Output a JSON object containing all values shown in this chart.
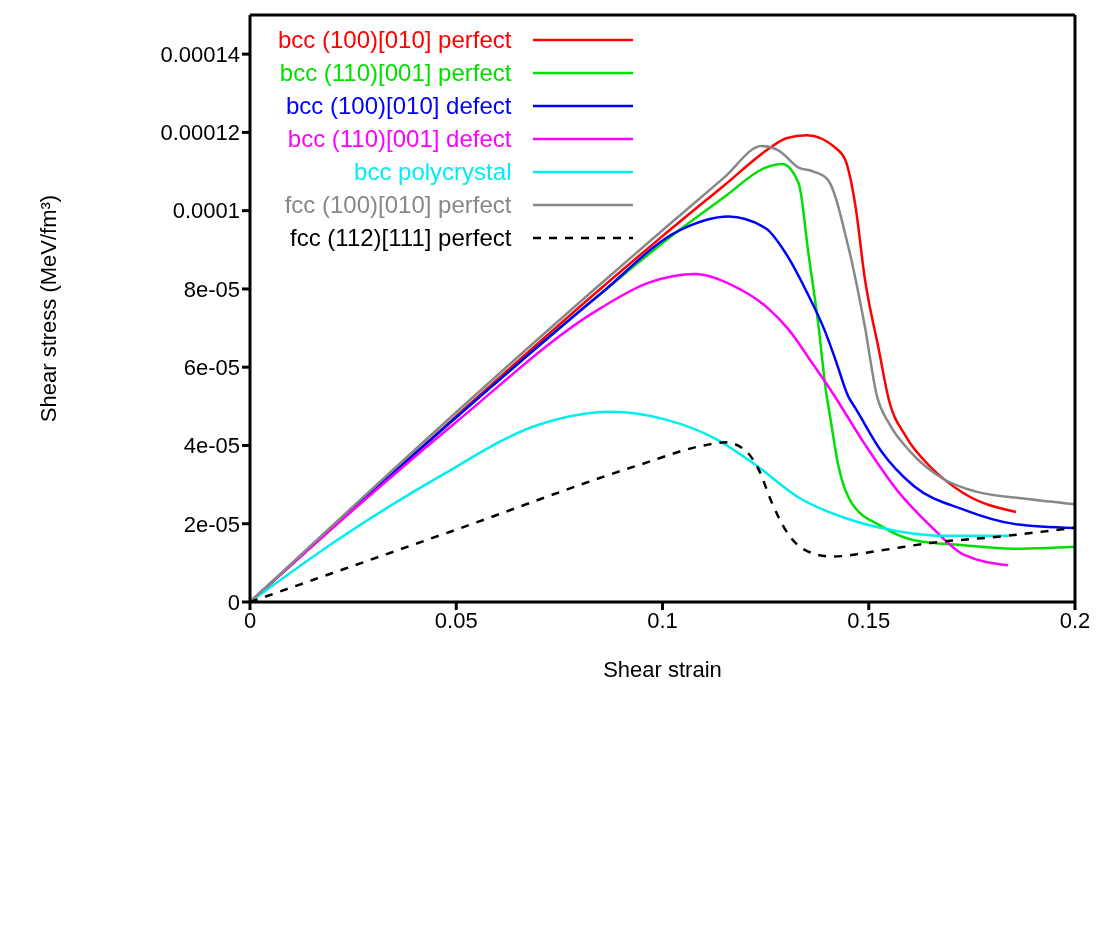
{
  "chart_data": {
    "type": "line",
    "xlabel": "Shear strain",
    "ylabel": "Shear stress (MeV/fm³)",
    "xlim": [
      0,
      0.2
    ],
    "xticks": [
      0,
      0.05,
      0.1,
      0.15,
      0.2
    ],
    "ylim": [
      0,
      0.00015
    ],
    "yticks": [
      0,
      {
        "value": 2e-05,
        "label": "2e-05"
      },
      {
        "value": 4e-05,
        "label": "4e-05"
      },
      {
        "value": 6e-05,
        "label": "6e-05"
      },
      {
        "value": 8e-05,
        "label": "8e-05"
      },
      0.0001,
      0.00012,
      0.00014
    ],
    "grid": false,
    "legend": "top left",
    "marker": "none",
    "series": [
      {
        "name": "bcc (100)[010] perfect",
        "color": "#ff0000",
        "line_style": "solid",
        "x": [
          0,
          0.05,
          0.0847,
          0.1,
          0.115,
          0.126,
          0.13,
          0.135,
          0.142,
          0.1443,
          0.1468,
          0.149,
          0.1524,
          0.1548,
          0.159,
          0.165,
          0.173,
          0.1857
        ],
        "values": [
          0,
          4.75e-05,
          7.98e-05,
          9.35e-05,
          0.0001065,
          0.000116,
          0.0001185,
          0.0001193,
          0.000116,
          0.000113,
          0.000101,
          8.3e-05,
          6.47e-05,
          5.2e-05,
          4.23e-05,
          3.45e-05,
          2.78e-05,
          2.3e-05
        ]
      },
      {
        "name": "bcc (110)[001] perfect",
        "color": "#00e000",
        "line_style": "solid",
        "x": [
          0,
          0.05,
          0.0847,
          0.104,
          0.115,
          0.125,
          0.129,
          0.133,
          0.1354,
          0.1378,
          0.1398,
          0.1403,
          0.1427,
          0.1458,
          0.153,
          0.161,
          0.173,
          0.185,
          0.2
        ],
        "values": [
          0,
          4.72e-05,
          7.85e-05,
          9.5e-05,
          0.0001035,
          0.000111,
          0.0001119,
          0.000107,
          8.89e-05,
          7.07e-05,
          5.26e-05,
          4.95e-05,
          3.45e-05,
          2.54e-05,
          1.94e-05,
          1.58e-05,
          1.45e-05,
          1.36e-05,
          1.41e-05
        ]
      },
      {
        "name": "bcc (100)[010] defect",
        "color": "#0000ff",
        "line_style": "solid",
        "x": [
          0,
          0.05,
          0.0847,
          0.104,
          0.116,
          0.125,
          0.13,
          0.1347,
          0.1395,
          0.142,
          0.145,
          0.1468,
          0.153,
          0.161,
          0.173,
          0.1855,
          0.2
        ],
        "values": [
          0,
          4.72e-05,
          7.85e-05,
          9.49e-05,
          9.85e-05,
          9.55e-05,
          8.89e-05,
          7.98e-05,
          6.89e-05,
          6.17e-05,
          5.26e-05,
          4.95e-05,
          3.86e-05,
          2.96e-05,
          2.36e-05,
          1.99e-05,
          1.89e-05
        ]
      },
      {
        "name": "bcc (110)[001] defect",
        "color": "#ff00ff",
        "line_style": "solid",
        "x": [
          0,
          0.025,
          0.05,
          0.0847,
          0.0967,
          0.108,
          0.1168,
          0.125,
          0.1306,
          0.1362,
          0.141,
          0.149,
          0.157,
          0.165,
          0.173,
          0.1838
        ],
        "values": [
          0,
          2.35e-05,
          4.6e-05,
          7.49e-05,
          8.16e-05,
          8.38e-05,
          8.1e-05,
          7.56e-05,
          6.96e-05,
          6.12e-05,
          5.38e-05,
          4.04e-05,
          2.84e-05,
          1.94e-05,
          1.21e-05,
          9.4e-06
        ]
      },
      {
        "name": "bcc polycrystal",
        "color": "#00eeee",
        "line_style": "solid",
        "x": [
          0,
          0.0218,
          0.046,
          0.07,
          0.0878,
          0.1008,
          0.1129,
          0.1226,
          0.133,
          0.145,
          0.157,
          0.169,
          0.1838
        ],
        "values": [
          0,
          1.63e-05,
          3.21e-05,
          4.53e-05,
          4.86e-05,
          4.66e-05,
          4.17e-05,
          3.5e-05,
          2.67e-05,
          2.12e-05,
          1.81e-05,
          1.69e-05,
          1.69e-05
        ]
      },
      {
        "name": "fcc (100)[010] perfect",
        "color": "#888888",
        "line_style": "solid",
        "x": [
          0,
          0.05,
          0.0847,
          0.1,
          0.115,
          0.124,
          0.128,
          0.133,
          0.1366,
          0.14,
          0.145,
          0.149,
          0.152,
          0.155,
          0.16,
          0.168,
          0.176,
          0.188,
          0.2
        ],
        "values": [
          0,
          4.85e-05,
          8.1e-05,
          9.5e-05,
          0.0001085,
          0.0001165,
          0.0001155,
          0.000111,
          0.00011,
          0.000108,
          9.1e-05,
          7.07e-05,
          5.26e-05,
          4.55e-05,
          3.85e-05,
          3.15e-05,
          2.82e-05,
          2.64e-05,
          2.5e-05
        ]
      },
      {
        "name": "fcc (112)[111] perfect",
        "color": "#000000",
        "line_style": "dashed",
        "x": [
          0,
          0.05,
          0.0943,
          0.11,
          0.1153,
          0.1202,
          0.1233,
          0.1265,
          0.13,
          0.1347,
          0.141,
          0.153,
          0.165,
          0.1814,
          0.2
        ],
        "values": [
          0,
          1.85e-05,
          3.5e-05,
          4e-05,
          4.08e-05,
          3.86e-05,
          3.39e-05,
          2.54e-05,
          1.81e-05,
          1.32e-05,
          1.16e-05,
          1.32e-05,
          1.51e-05,
          1.67e-05,
          1.9e-05
        ]
      }
    ]
  }
}
